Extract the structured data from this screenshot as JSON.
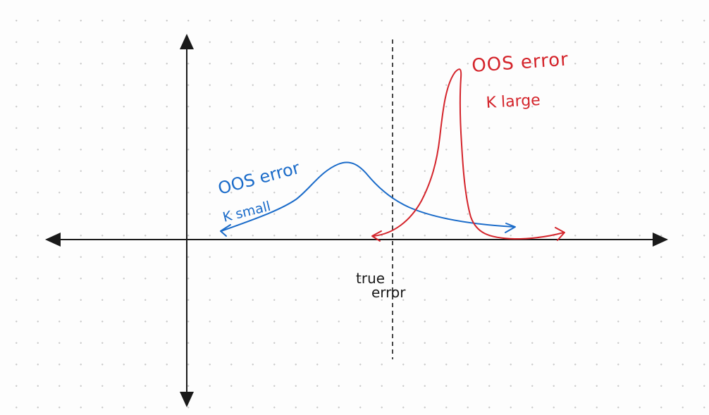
{
  "colors": {
    "axis": "#1a1a1a",
    "small_k": "#1a6bc9",
    "large_k": "#d4242b",
    "dashed": "#1a1a1a"
  },
  "labels": {
    "small_k_title": "OOS error",
    "small_k_subtitle": "K small",
    "large_k_title": "OOS error",
    "large_k_subtitle": "K large",
    "true_error_line1": "true",
    "true_error_line2": "error"
  }
}
